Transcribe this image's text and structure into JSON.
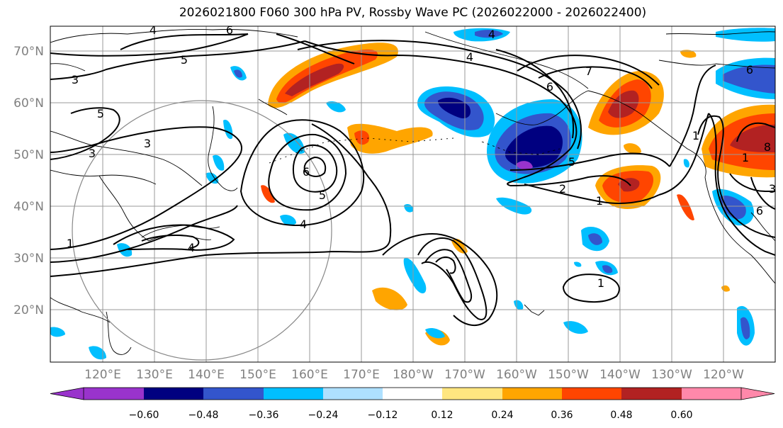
{
  "title": "2026021800 F060 300 hPa PV, Rossby Wave PC (2026022000 - 2026022400)",
  "lat_labels": [
    "70°N",
    "60°N",
    "50°N",
    "40°N",
    "30°N",
    "20°N"
  ],
  "lon_labels": [
    "120°E",
    "130°E",
    "140°E",
    "150°E",
    "160°E",
    "170°E",
    "180°W",
    "170°W",
    "160°W",
    "150°W",
    "140°W",
    "130°W",
    "120°W"
  ],
  "contour_labels": [
    "4",
    "6",
    "3",
    "5",
    "3",
    "5",
    "3",
    "1",
    "4",
    "6",
    "5",
    "4",
    "1",
    "4",
    "4",
    "7",
    "6",
    "5",
    "2",
    "1",
    "1",
    "6",
    "1",
    "8",
    "3",
    "6"
  ],
  "colorbar": {
    "ticks": [
      "−0.60",
      "−0.48",
      "−0.36",
      "−0.24",
      "−0.12",
      "0.12",
      "0.24",
      "0.36",
      "0.48",
      "0.60"
    ],
    "colors": [
      "#9933cc",
      "#000080",
      "#3355cc",
      "#00bfff",
      "#aee0ff",
      "#ffffff",
      "#ffe680",
      "#ffa500",
      "#ff4500",
      "#b22222",
      "#ff88aa"
    ]
  },
  "map_colors": {
    "land_outline": "#000000",
    "grid": "#999999",
    "circle": "#888888"
  }
}
